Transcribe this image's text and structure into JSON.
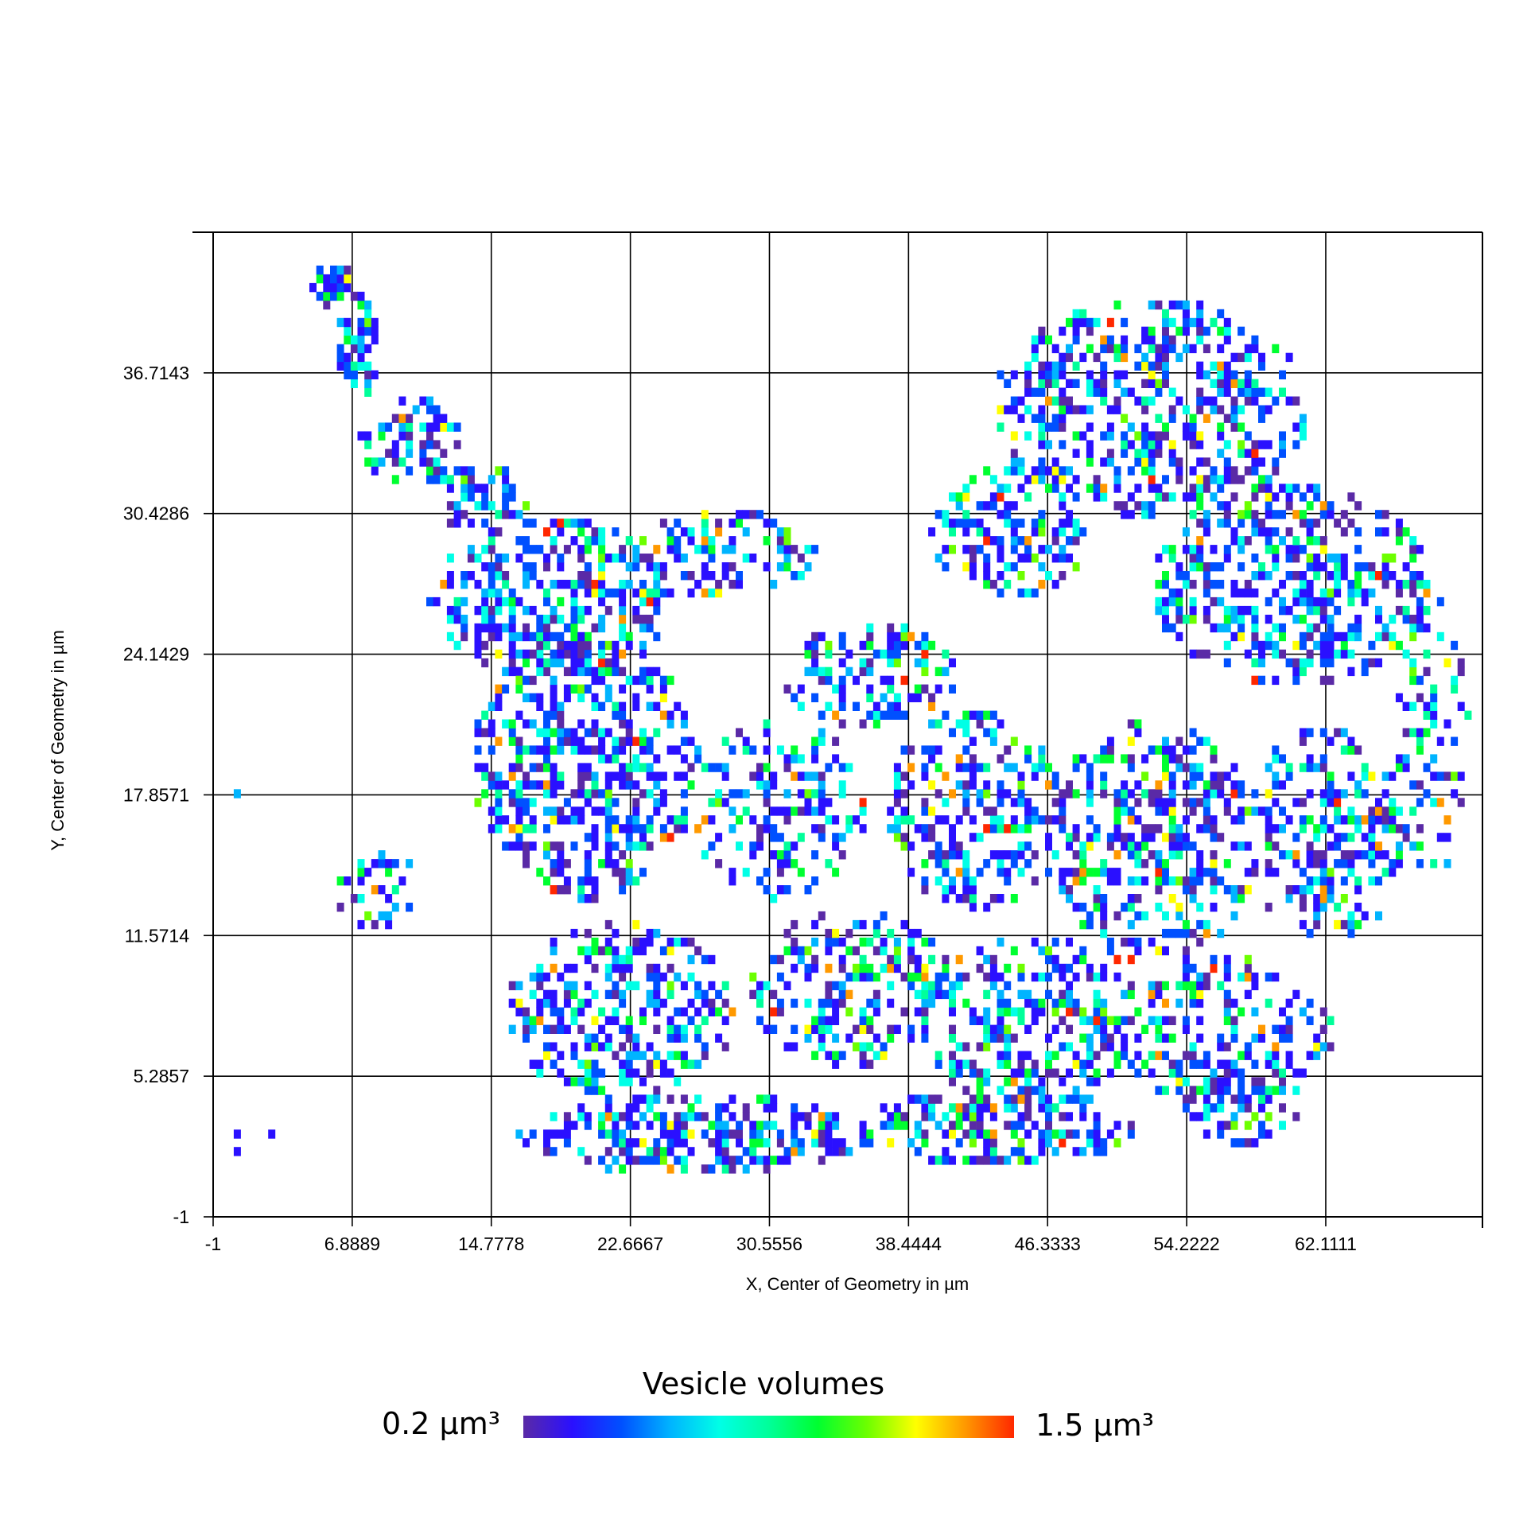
{
  "chart_data": {
    "type": "heatmap",
    "title": "",
    "xlabel": "X, Center of Geometry in µm",
    "ylabel": "Y, Center of Geometry in µm",
    "xlim": [
      -1,
      71
    ],
    "ylim": [
      -1,
      43
    ],
    "x_ticks": [
      -1,
      6.8889,
      14.7778,
      22.6667,
      30.5556,
      38.4444,
      46.3333,
      54.2222,
      62.1111
    ],
    "x_tick_labels": [
      "-1",
      "6.8889",
      "14.7778",
      "22.6667",
      "30.5556",
      "38.4444",
      "46.3333",
      "54.2222",
      "62.1111"
    ],
    "y_ticks": [
      -1,
      5.2857,
      11.5714,
      17.8571,
      24.1429,
      30.4286,
      36.7143
    ],
    "y_tick_labels": [
      "-1",
      "5.2857",
      "11.5714",
      "17.8571",
      "24.1429",
      "30.4286",
      "36.7143"
    ],
    "grid": true,
    "colorbar": {
      "title": "Vesicle volumes",
      "min_label": "0.2 µm³",
      "max_label": "1.5 µm³",
      "min": 0.2,
      "max": 1.5,
      "colors": [
        "#5a2aa6",
        "#2a10ff",
        "#0050ff",
        "#00b4ff",
        "#00ffe6",
        "#00ff9a",
        "#00ff30",
        "#6cff00",
        "#ffff00",
        "#ff9900",
        "#ff2800"
      ]
    },
    "cell_size_um": 0.39,
    "clusters": [
      {
        "x": 5.5,
        "y": 40.5,
        "rx": 1.2,
        "ry": 1.0,
        "density": 0.9
      },
      {
        "x": 7.0,
        "y": 37.5,
        "rx": 1.2,
        "ry": 2.5,
        "density": 0.7
      },
      {
        "x": 10.0,
        "y": 33.5,
        "rx": 3.0,
        "ry": 2.0,
        "density": 0.6
      },
      {
        "x": 14.0,
        "y": 31.0,
        "rx": 3.0,
        "ry": 1.5,
        "density": 0.6
      },
      {
        "x": 18.0,
        "y": 26.5,
        "rx": 7.0,
        "ry": 3.5,
        "density": 0.55
      },
      {
        "x": 28.0,
        "y": 28.5,
        "rx": 5.0,
        "ry": 2.0,
        "density": 0.45
      },
      {
        "x": 36.0,
        "y": 23.0,
        "rx": 5.0,
        "ry": 2.5,
        "density": 0.5
      },
      {
        "x": 44.0,
        "y": 29.5,
        "rx": 4.5,
        "ry": 3.0,
        "density": 0.55
      },
      {
        "x": 52.0,
        "y": 35.0,
        "rx": 9.0,
        "ry": 5.0,
        "density": 0.5
      },
      {
        "x": 60.0,
        "y": 27.0,
        "rx": 8.0,
        "ry": 4.5,
        "density": 0.5
      },
      {
        "x": 20.0,
        "y": 19.0,
        "rx": 6.5,
        "ry": 6.0,
        "density": 0.55
      },
      {
        "x": 31.0,
        "y": 17.0,
        "rx": 5.0,
        "ry": 4.0,
        "density": 0.4
      },
      {
        "x": 42.0,
        "y": 17.0,
        "rx": 5.0,
        "ry": 4.5,
        "density": 0.45
      },
      {
        "x": 52.0,
        "y": 15.5,
        "rx": 6.0,
        "ry": 5.5,
        "density": 0.5
      },
      {
        "x": 62.0,
        "y": 16.0,
        "rx": 4.5,
        "ry": 5.0,
        "density": 0.45
      },
      {
        "x": 22.0,
        "y": 8.0,
        "rx": 6.5,
        "ry": 4.0,
        "density": 0.5
      },
      {
        "x": 35.0,
        "y": 9.0,
        "rx": 6.0,
        "ry": 3.5,
        "density": 0.5
      },
      {
        "x": 45.0,
        "y": 7.5,
        "rx": 6.0,
        "ry": 4.0,
        "density": 0.5
      },
      {
        "x": 56.0,
        "y": 7.0,
        "rx": 6.5,
        "ry": 3.5,
        "density": 0.4
      },
      {
        "x": 26.0,
        "y": 2.5,
        "rx": 10.0,
        "ry": 1.8,
        "density": 0.6
      },
      {
        "x": 43.0,
        "y": 2.8,
        "rx": 8.0,
        "ry": 1.8,
        "density": 0.55
      },
      {
        "x": 57.0,
        "y": 3.5,
        "rx": 3.5,
        "ry": 1.5,
        "density": 0.4
      },
      {
        "x": 8.0,
        "y": 13.5,
        "rx": 2.5,
        "ry": 1.8,
        "density": 0.35
      },
      {
        "x": 68.0,
        "y": 20.5,
        "rx": 2.0,
        "ry": 6.5,
        "density": 0.25
      }
    ],
    "isolated_points": [
      {
        "x": 0.3,
        "y": 17.9,
        "v": 0.6
      },
      {
        "x": 0.5,
        "y": 2.8,
        "v": 0.3
      },
      {
        "x": 2.2,
        "y": 2.8,
        "v": 0.3
      },
      {
        "x": 0.5,
        "y": 2.0,
        "v": 0.3
      }
    ]
  }
}
